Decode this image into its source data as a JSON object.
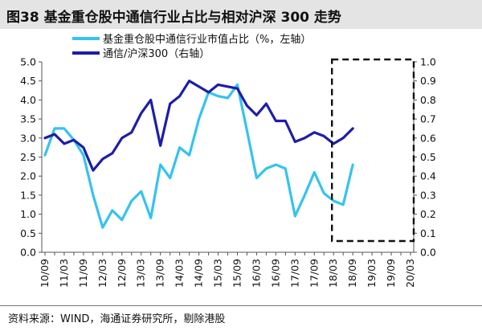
{
  "figure": {
    "title": "图38 基金重仓股中通信行业占比与相对沪深 300 走势",
    "source": "资料来源：WIND，海通证券研究所，剔除港股"
  },
  "chart_data": {
    "type": "line",
    "x": [
      "10/09",
      "10/12",
      "11/03",
      "11/06",
      "11/09",
      "11/12",
      "12/03",
      "12/06",
      "12/09",
      "12/12",
      "13/03",
      "13/06",
      "13/09",
      "13/12",
      "14/03",
      "14/06",
      "14/09",
      "14/12",
      "15/03",
      "15/06",
      "15/09",
      "15/12",
      "16/03",
      "16/06",
      "16/09",
      "16/12",
      "17/03",
      "17/06",
      "17/09",
      "17/12",
      "18/03",
      "18/06",
      "18/09",
      "18/12",
      "19/03",
      "19/06",
      "19/09",
      "19/12",
      "20/03"
    ],
    "x_tick_labels": [
      "10/09",
      "11/03",
      "11/09",
      "12/03",
      "12/09",
      "13/03",
      "13/09",
      "14/03",
      "14/09",
      "15/03",
      "15/09",
      "16/03",
      "16/09",
      "17/03",
      "17/09",
      "18/03",
      "18/09",
      "19/03",
      "19/09",
      "20/03"
    ],
    "series": [
      {
        "name": "基金重仓股中通信行业市值占比（%，左轴）",
        "axis": "left",
        "color": "#35c3ef",
        "values": [
          2.55,
          3.25,
          3.25,
          2.95,
          2.55,
          1.5,
          0.65,
          1.1,
          0.85,
          1.35,
          1.6,
          0.9,
          2.3,
          1.95,
          2.75,
          2.55,
          3.5,
          4.2,
          4.1,
          4.05,
          4.4,
          3.2,
          1.95,
          2.2,
          2.3,
          2.2,
          0.95,
          1.5,
          2.1,
          1.55,
          1.35,
          1.25,
          2.3,
          null,
          null,
          null,
          null,
          null,
          null
        ]
      },
      {
        "name": "通信/沪深300（右轴）",
        "axis": "right",
        "color": "#1d1ea8",
        "values": [
          0.6,
          0.62,
          0.57,
          0.59,
          0.55,
          0.43,
          0.49,
          0.52,
          0.6,
          0.63,
          0.73,
          0.8,
          0.56,
          0.78,
          0.82,
          0.9,
          0.87,
          0.84,
          0.88,
          0.87,
          0.86,
          0.77,
          0.72,
          0.78,
          0.69,
          0.69,
          0.58,
          0.6,
          0.63,
          0.61,
          0.57,
          0.6,
          0.65,
          null,
          null,
          null,
          null,
          null,
          null
        ]
      }
    ],
    "y_left": {
      "min": 0,
      "max": 5,
      "step": 0.5,
      "ticks": [
        "0.0",
        "0.5",
        "1.0",
        "1.5",
        "2.0",
        "2.5",
        "3.0",
        "3.5",
        "4.0",
        "4.5",
        "5.0"
      ]
    },
    "y_right": {
      "min": 0,
      "max": 1,
      "step": 0.1,
      "ticks": [
        "0.0",
        "0.1",
        "0.2",
        "0.3",
        "0.4",
        "0.5",
        "0.6",
        "0.7",
        "0.8",
        "0.9",
        "1.0"
      ]
    },
    "grid": false,
    "legend_position": "top-center",
    "highlight_box": {
      "x_from": "18/03",
      "x_to": "20/03",
      "style": "dashed"
    }
  }
}
